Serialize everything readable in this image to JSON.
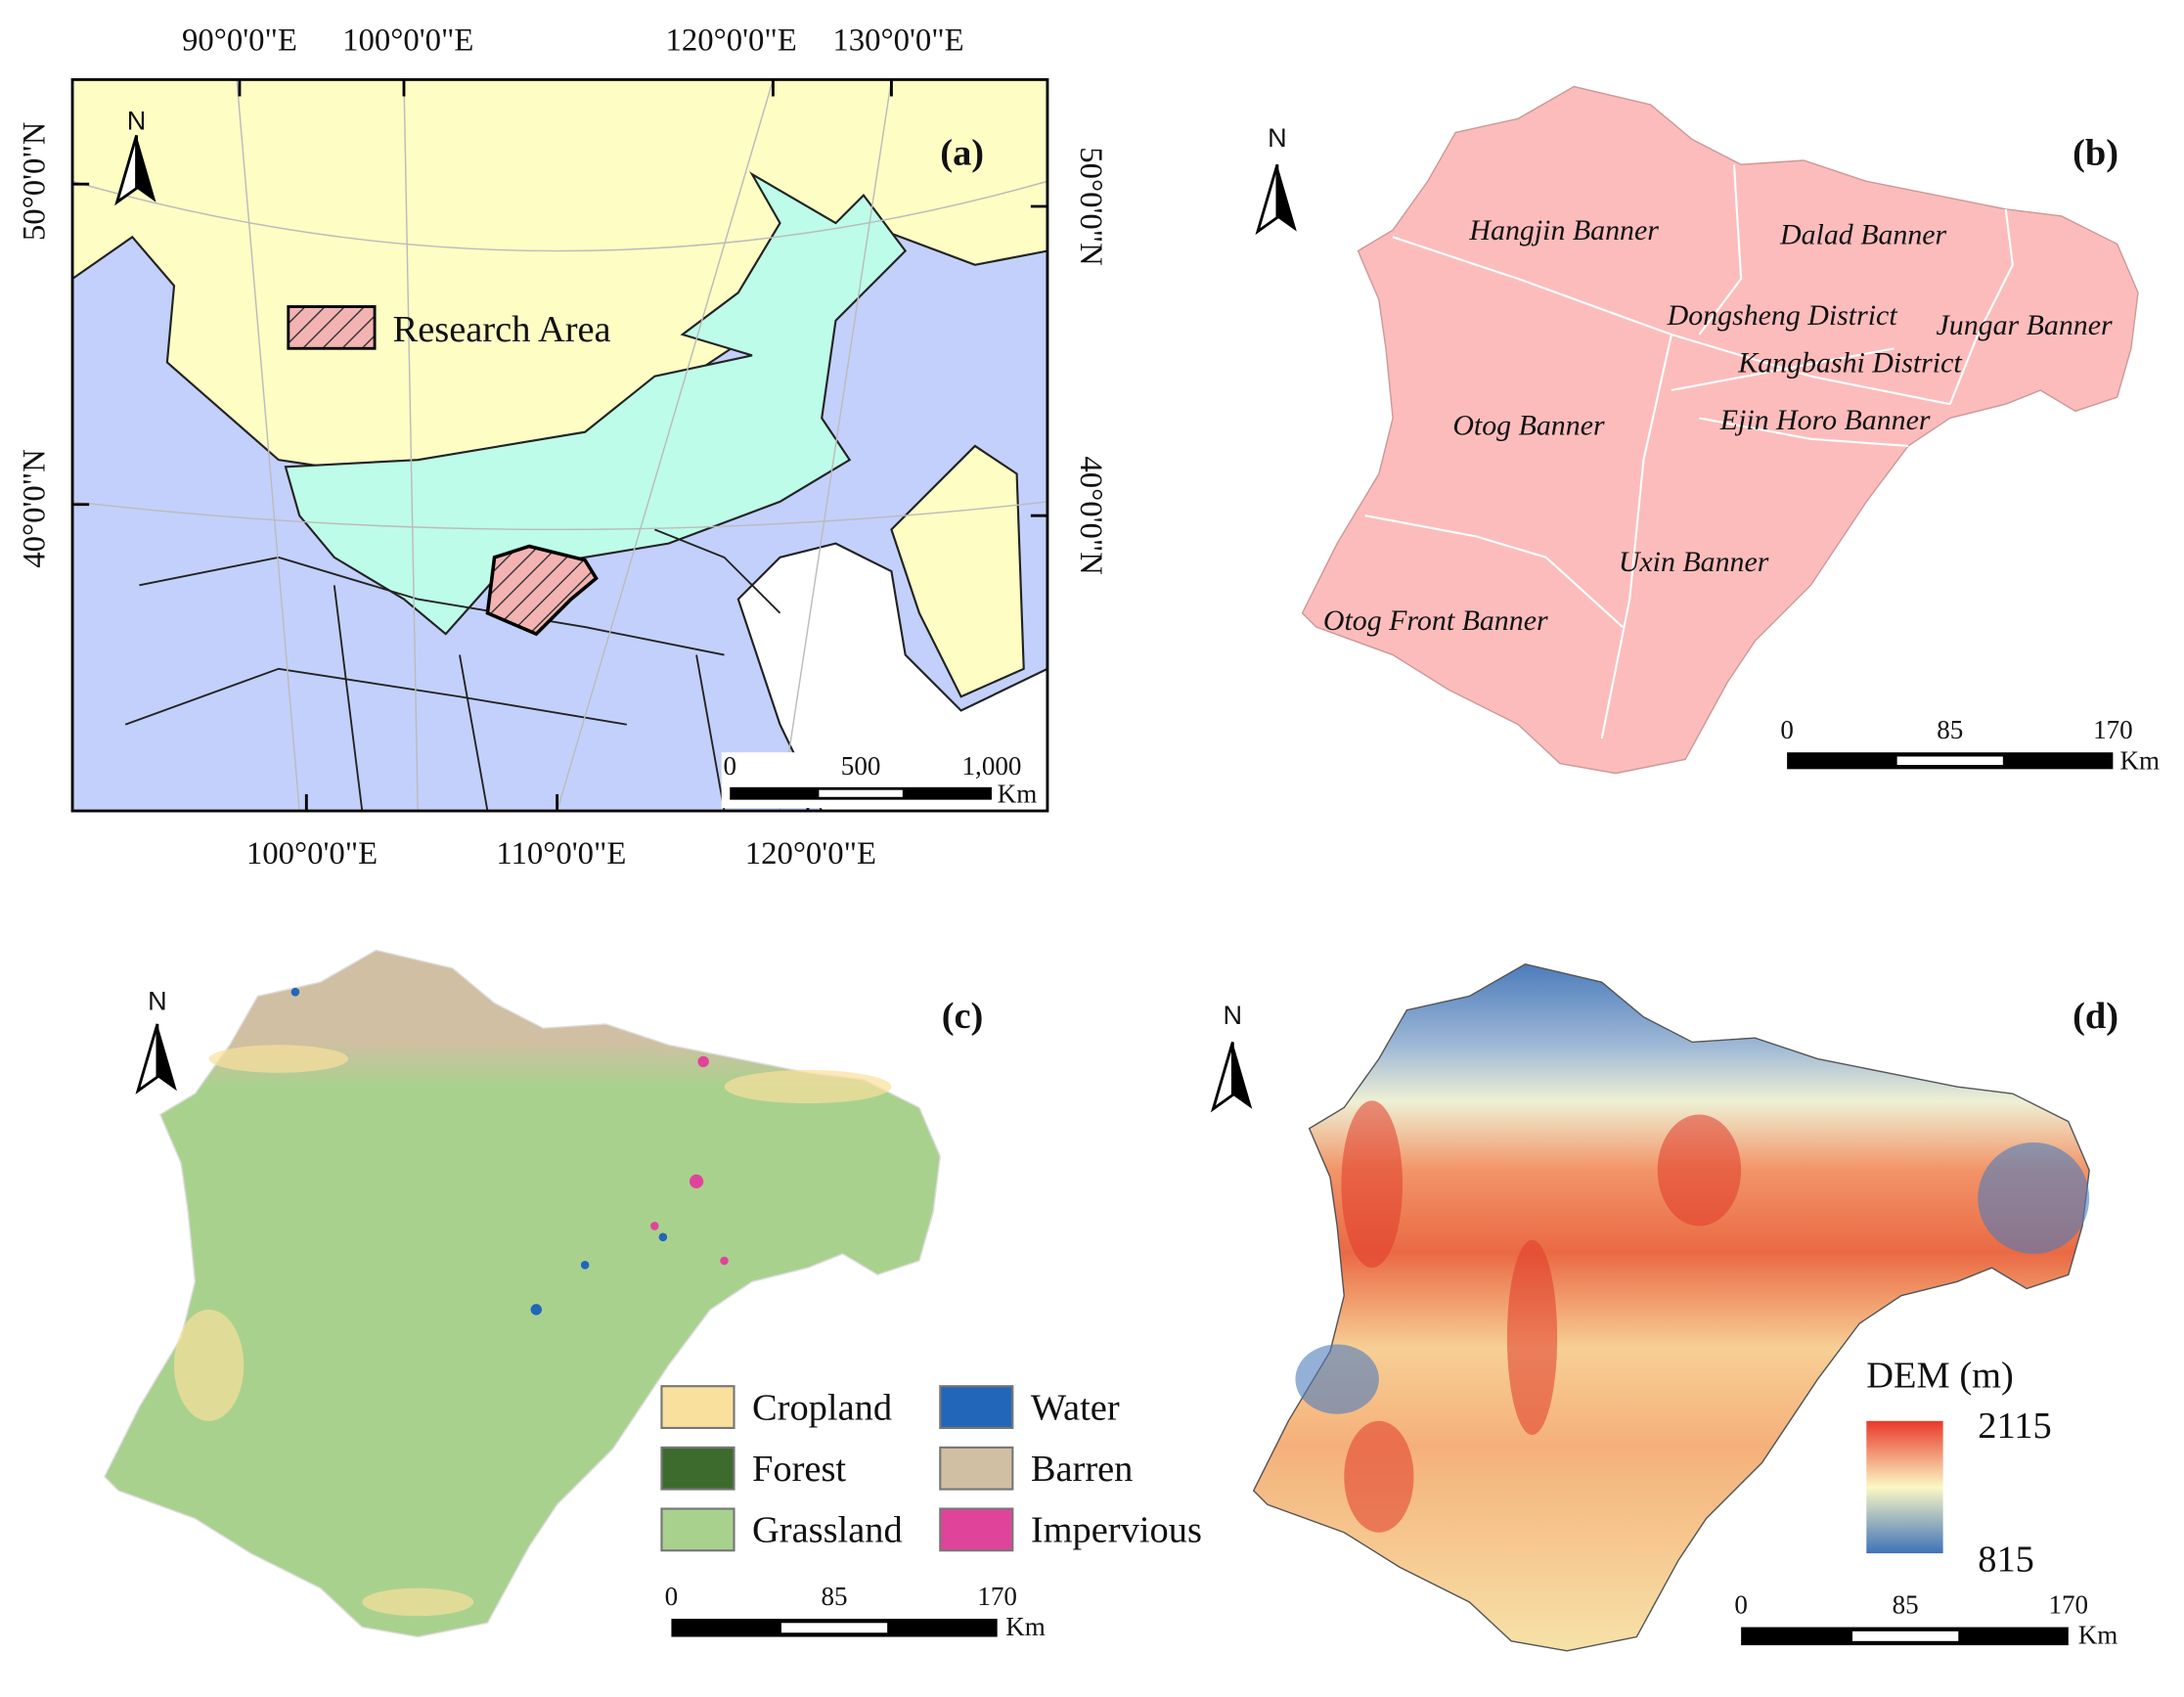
{
  "panels": [
    {
      "label": "(a)",
      "north": "N",
      "top_labels": [
        "90°0'0\"E",
        "100°0'0\"E",
        "120°0'0\"E",
        "130°0'0\"E"
      ],
      "bottom_labels": [
        "100°0'0\"E",
        "110°0'0\"E",
        "120°0'0\"E"
      ],
      "left_labels": [
        "50°0'0\"N",
        "40°0'0\"N"
      ],
      "right_labels": [
        "50°0'0\"N",
        "40°0'0\"N"
      ],
      "legend": "Research Area",
      "scale": {
        "ticks": [
          "0",
          "500",
          "1,000"
        ],
        "unit": "Km"
      }
    },
    {
      "label": "(b)",
      "north": "N",
      "districts": [
        "Hangjin Banner",
        "Dalad Banner",
        "Dongsheng District",
        "Jungar Banner",
        "Kangbashi District",
        "Otog Banner",
        "Ejin Horo Banner",
        "Uxin Banner",
        "Otog Front Banner"
      ],
      "scale": {
        "ticks": [
          "0",
          "85",
          "170"
        ],
        "unit": "Km"
      }
    },
    {
      "label": "(c)",
      "north": "N",
      "legend": [
        {
          "name": "Cropland",
          "color": "#f9e09c"
        },
        {
          "name": "Water",
          "color": "#2166b8"
        },
        {
          "name": "Forest",
          "color": "#3d6b2e"
        },
        {
          "name": "Barren",
          "color": "#d1bfa3"
        },
        {
          "name": "Grassland",
          "color": "#a9d18e"
        },
        {
          "name": "Impervious",
          "color": "#e0449a"
        }
      ],
      "scale": {
        "ticks": [
          "0",
          "85",
          "170"
        ],
        "unit": "Km"
      }
    },
    {
      "label": "(d)",
      "north": "N",
      "legend_title": "DEM (m)",
      "max": "2115",
      "min": "815",
      "scale": {
        "ticks": [
          "0",
          "85",
          "170"
        ],
        "unit": "Km"
      }
    }
  ]
}
